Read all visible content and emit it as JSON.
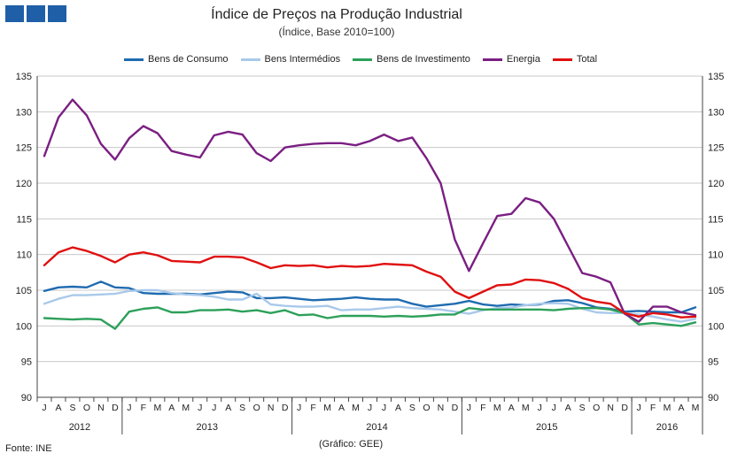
{
  "header": {
    "logo_name": "INE logo"
  },
  "footer": {
    "source": "Fonte: INE",
    "credit": "(Gráfico: GEE)"
  },
  "colors": {
    "Bens de Consumo": "#1f6bb0",
    "Bens Intermédios": "#a9c9ea",
    "Bens de Investimento": "#2ca05a",
    "Energia": "#7a1f82",
    "Total": "#e01010"
  },
  "chart_data": {
    "type": "line",
    "title": "Índice de Preços na Produção Industrial",
    "subtitle": "(Índice, Base 2010=100)",
    "xlabel": "",
    "ylabel": "",
    "ylim": [
      90,
      135
    ],
    "yticks": [
      90,
      95,
      100,
      105,
      110,
      115,
      120,
      125,
      130,
      135
    ],
    "legend_position": "top",
    "categories": [
      "J",
      "A",
      "S",
      "O",
      "N",
      "D",
      "J",
      "F",
      "M",
      "A",
      "M",
      "J",
      "J",
      "A",
      "S",
      "O",
      "N",
      "D",
      "J",
      "F",
      "M",
      "A",
      "M",
      "J",
      "J",
      "A",
      "S",
      "O",
      "N",
      "D",
      "J",
      "F",
      "M",
      "A",
      "M",
      "J",
      "J",
      "A",
      "S",
      "O",
      "N",
      "D",
      "J",
      "F",
      "M",
      "A",
      "M"
    ],
    "years": [
      {
        "label": "2012",
        "start": 0,
        "end": 5
      },
      {
        "label": "2013",
        "start": 6,
        "end": 17
      },
      {
        "label": "2014",
        "start": 18,
        "end": 29
      },
      {
        "label": "2015",
        "start": 30,
        "end": 41
      },
      {
        "label": "2016",
        "start": 42,
        "end": 46
      }
    ],
    "series": [
      {
        "name": "Bens de Consumo",
        "values": [
          104.9,
          105.4,
          105.5,
          105.4,
          106.2,
          105.4,
          105.3,
          104.6,
          104.5,
          104.5,
          104.5,
          104.4,
          104.6,
          104.8,
          104.7,
          103.9,
          103.9,
          104.0,
          103.8,
          103.6,
          103.7,
          103.8,
          104.0,
          103.8,
          103.7,
          103.7,
          103.1,
          102.7,
          102.9,
          103.1,
          103.5,
          103.0,
          102.8,
          103.0,
          102.9,
          103.0,
          103.5,
          103.6,
          103.2,
          102.6,
          102.4,
          102.0,
          102.1,
          102.0,
          101.9,
          101.9,
          102.6
        ]
      },
      {
        "name": "Bens Intermédios",
        "values": [
          103.1,
          103.8,
          104.3,
          104.3,
          104.4,
          104.5,
          104.9,
          105.0,
          105.0,
          104.6,
          104.4,
          104.3,
          104.1,
          103.7,
          103.7,
          104.5,
          103.0,
          102.8,
          102.7,
          102.7,
          102.8,
          102.2,
          102.3,
          102.3,
          102.5,
          102.7,
          102.5,
          102.4,
          102.3,
          102.0,
          101.7,
          102.2,
          102.5,
          102.6,
          102.9,
          103.1,
          103.2,
          103.1,
          102.4,
          101.9,
          101.8,
          101.8,
          101.6,
          101.3,
          100.9,
          100.6,
          101.0
        ]
      },
      {
        "name": "Bens de Investimento",
        "values": [
          101.1,
          101.0,
          100.9,
          101.0,
          100.9,
          99.6,
          102.0,
          102.4,
          102.6,
          101.9,
          101.9,
          102.2,
          102.2,
          102.3,
          102.0,
          102.2,
          101.8,
          102.2,
          101.5,
          101.6,
          101.1,
          101.4,
          101.4,
          101.4,
          101.3,
          101.4,
          101.3,
          101.4,
          101.6,
          101.6,
          102.5,
          102.3,
          102.3,
          102.3,
          102.3,
          102.3,
          102.2,
          102.4,
          102.5,
          102.5,
          102.3,
          101.8,
          100.2,
          100.4,
          100.2,
          100.0,
          100.5
        ]
      },
      {
        "name": "Energia",
        "values": [
          123.8,
          129.2,
          131.7,
          129.5,
          125.5,
          123.3,
          126.3,
          128.0,
          127.0,
          124.5,
          124.0,
          123.6,
          126.7,
          127.2,
          126.8,
          124.2,
          123.1,
          125.0,
          125.3,
          125.5,
          125.6,
          125.6,
          125.3,
          125.9,
          126.8,
          125.9,
          126.4,
          123.5,
          120.0,
          112.1,
          107.7,
          111.6,
          115.4,
          115.7,
          117.9,
          117.3,
          115.0,
          111.2,
          107.4,
          106.9,
          106.1,
          101.7,
          100.6,
          102.7,
          102.7,
          101.9,
          101.5
        ]
      },
      {
        "name": "Total",
        "values": [
          108.5,
          110.3,
          111.0,
          110.5,
          109.8,
          108.9,
          110.0,
          110.3,
          109.9,
          109.1,
          109.0,
          108.9,
          109.7,
          109.7,
          109.6,
          108.9,
          108.1,
          108.5,
          108.4,
          108.5,
          108.2,
          108.4,
          108.3,
          108.4,
          108.7,
          108.6,
          108.5,
          107.6,
          106.9,
          104.8,
          103.9,
          104.8,
          105.7,
          105.8,
          106.5,
          106.4,
          106.0,
          105.2,
          103.9,
          103.4,
          103.1,
          101.8,
          101.3,
          101.8,
          101.6,
          101.2,
          101.3
        ]
      }
    ]
  }
}
